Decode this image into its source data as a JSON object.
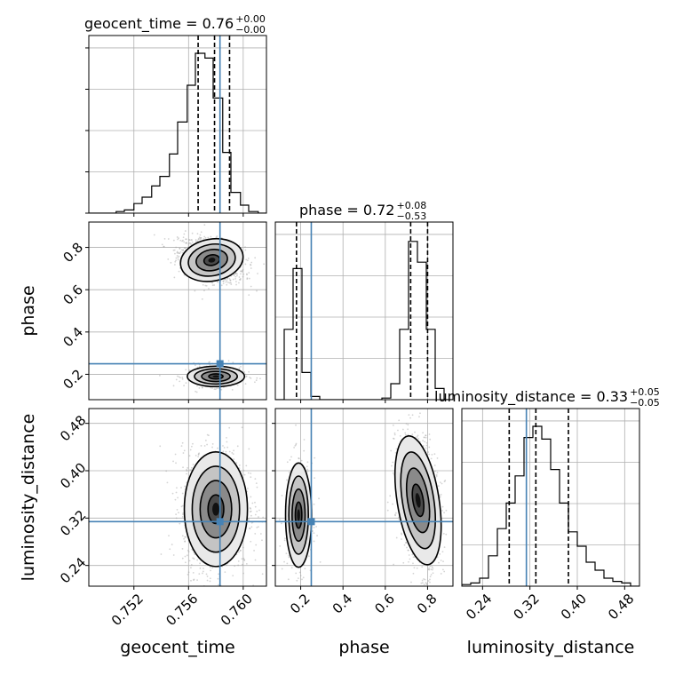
{
  "chart_data": {
    "type": "corner",
    "parameters": [
      "geocent_time",
      "phase",
      "luminosity_distance"
    ],
    "axis_labels": {
      "geocent_time": "geocent_time",
      "phase": "phase",
      "luminosity_distance": "luminosity_distance"
    },
    "ranges": {
      "geocent_time": [
        0.7487,
        0.7617
      ],
      "phase": [
        0.08,
        0.92
      ],
      "luminosity_distance": [
        0.205,
        0.505
      ]
    },
    "ticks": {
      "geocent_time": [
        0.752,
        0.756,
        0.76
      ],
      "phase": [
        0.2,
        0.4,
        0.6,
        0.8
      ],
      "luminosity_distance": [
        0.24,
        0.32,
        0.4,
        0.48
      ]
    },
    "tick_labels": {
      "geocent_time": [
        "0.752",
        "0.756",
        "0.760"
      ],
      "phase": [
        "0.2",
        "0.4",
        "0.6",
        "0.8"
      ],
      "luminosity_distance": [
        "0.24",
        "0.32",
        "0.40",
        "0.48"
      ]
    },
    "truths": {
      "geocent_time": 0.7583,
      "phase": 0.25,
      "luminosity_distance": 0.314
    },
    "titles": [
      {
        "param": "geocent_time",
        "text": "geocent_time = 0.76",
        "plus": "+0.00",
        "minus": "−0.00"
      },
      {
        "param": "phase",
        "text": "phase = 0.72",
        "plus": "+0.08",
        "minus": "−0.53"
      },
      {
        "param": "luminosity_distance",
        "text": "luminosity_distance = 0.33",
        "plus": "+0.05",
        "minus": "−0.05"
      }
    ],
    "quantiles": {
      "geocent_time": [
        0.7567,
        0.7579,
        0.759
      ],
      "phase": [
        0.18,
        0.72,
        0.8
      ],
      "luminosity_distance": [
        0.285,
        0.33,
        0.385
      ]
    },
    "histograms": {
      "geocent_time": {
        "edges": [
          0.7487,
          0.7494,
          0.75,
          0.7507,
          0.7513,
          0.752,
          0.7526,
          0.7533,
          0.7539,
          0.7546,
          0.7552,
          0.7559,
          0.7565,
          0.7572,
          0.7578,
          0.7585,
          0.7591,
          0.7598,
          0.7604,
          0.7611,
          0.7617
        ],
        "counts": [
          0,
          0,
          0,
          0.01,
          0.02,
          0.06,
          0.1,
          0.17,
          0.23,
          0.37,
          0.57,
          0.8,
          1.0,
          0.97,
          0.72,
          0.38,
          0.13,
          0.05,
          0.01,
          0
        ]
      },
      "phase": {
        "edges": [
          0.08,
          0.122,
          0.164,
          0.206,
          0.248,
          0.29,
          0.332,
          0.374,
          0.416,
          0.458,
          0.5,
          0.542,
          0.584,
          0.626,
          0.668,
          0.71,
          0.752,
          0.794,
          0.836,
          0.878,
          0.92
        ],
        "counts": [
          0,
          0.44,
          0.82,
          0.17,
          0.02,
          0,
          0,
          0,
          0,
          0,
          0,
          0,
          0.01,
          0.1,
          0.44,
          0.99,
          0.86,
          0.44,
          0.07,
          0
        ]
      },
      "luminosity_distance": {
        "edges": [
          0.205,
          0.22,
          0.235,
          0.25,
          0.265,
          0.28,
          0.295,
          0.31,
          0.325,
          0.34,
          0.355,
          0.37,
          0.385,
          0.4,
          0.415,
          0.43,
          0.445,
          0.46,
          0.475,
          0.49,
          0.505
        ],
        "counts": [
          0.01,
          0.02,
          0.05,
          0.19,
          0.36,
          0.52,
          0.69,
          0.93,
          1.0,
          0.92,
          0.73,
          0.52,
          0.34,
          0.25,
          0.15,
          0.1,
          0.05,
          0.03,
          0.02,
          0
        ]
      }
    },
    "modes": {
      "geocent_time|phase": [
        {
          "cx": 0.7577,
          "cy": 0.74,
          "sx": 0.00105,
          "sy": 0.045,
          "rho": -0.35,
          "w": 0.74
        },
        {
          "cx": 0.758,
          "cy": 0.19,
          "sx": 0.00095,
          "sy": 0.022,
          "rho": 0.0,
          "w": 0.26
        }
      ],
      "geocent_time|luminosity_distance": [
        {
          "cx": 0.758,
          "cy": 0.335,
          "sx": 0.00105,
          "sy": 0.044,
          "rho": 0.0,
          "w": 1.0
        }
      ],
      "phase|luminosity_distance": [
        {
          "cx": 0.19,
          "cy": 0.325,
          "sx": 0.028,
          "sy": 0.04,
          "rho": 0.0,
          "w": 0.27
        },
        {
          "cx": 0.755,
          "cy": 0.35,
          "sx": 0.045,
          "sy": 0.05,
          "rho": -0.3,
          "w": 0.73
        }
      ]
    },
    "grid": true,
    "colors": {
      "truth": "#4682b4",
      "hist": "#000000",
      "scatter": "#a0a0a0",
      "grid": "#b0b0b0"
    }
  }
}
